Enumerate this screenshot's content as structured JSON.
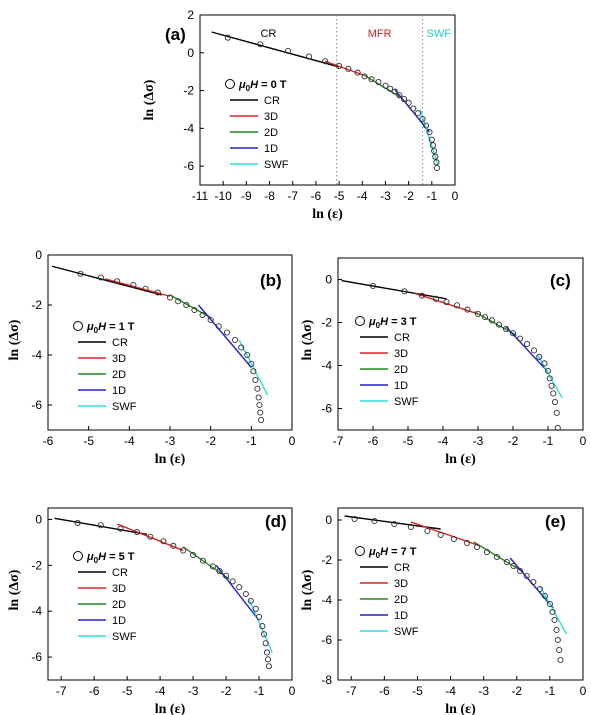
{
  "chart_data": [
    {
      "panel": "(a)",
      "type": "scatter",
      "xlabel": "ln (ε)",
      "ylabel": "ln (Δσ)",
      "xlim": [
        -11,
        0
      ],
      "ylim": [
        -7,
        2
      ],
      "xticks": [
        -11,
        -10,
        -9,
        -8,
        -7,
        -6,
        -5,
        -4,
        -3,
        -2,
        -1,
        0
      ],
      "yticks": [
        -6,
        -4,
        -2,
        0,
        2
      ],
      "legend_title": "μ0H = 0 T",
      "legend_entries": [
        "CR",
        "3D",
        "2D",
        "1D",
        "SWF"
      ],
      "region_labels": [
        {
          "text": "CR",
          "color": "#000000"
        },
        {
          "text": "MFR",
          "color": "#cc2222"
        },
        {
          "text": "SWF",
          "color": "#22cccc"
        }
      ],
      "region_boundaries": [
        -5.1,
        -1.4
      ],
      "points": {
        "x": [
          -9.8,
          -8.4,
          -7.2,
          -6.3,
          -5.6,
          -5.0,
          -4.6,
          -4.2,
          -3.9,
          -3.6,
          -3.3,
          -3.0,
          -2.8,
          -2.6,
          -2.4,
          -2.2,
          -2.0,
          -1.8,
          -1.6,
          -1.4,
          -1.25,
          -1.1,
          -1.0,
          -0.95,
          -0.9,
          -0.85,
          -0.8,
          -0.78
        ],
        "y": [
          0.8,
          0.45,
          0.1,
          -0.2,
          -0.45,
          -0.7,
          -0.85,
          -1.05,
          -1.25,
          -1.4,
          -1.55,
          -1.75,
          -1.9,
          -2.05,
          -2.25,
          -2.45,
          -2.65,
          -2.95,
          -3.2,
          -3.5,
          -3.85,
          -4.2,
          -4.6,
          -4.9,
          -5.2,
          -5.5,
          -5.8,
          -6.1
        ]
      },
      "series": [
        {
          "name": "CR",
          "color": "#000000",
          "x": [
            -10.5,
            -5.0
          ],
          "y": [
            1.1,
            -0.75
          ]
        },
        {
          "name": "3D",
          "color": "#dd2222",
          "x": [
            -5.6,
            -3.8
          ],
          "y": [
            -0.45,
            -1.25
          ]
        },
        {
          "name": "2D",
          "color": "#228822",
          "x": [
            -3.9,
            -2.3
          ],
          "y": [
            -1.2,
            -2.4
          ]
        },
        {
          "name": "1D",
          "color": "#2222cc",
          "x": [
            -2.6,
            -1.1
          ],
          "y": [
            -1.95,
            -4.2
          ]
        },
        {
          "name": "SWF",
          "color": "#33dddd",
          "x": [
            -1.5,
            -0.75
          ],
          "y": [
            -3.0,
            -5.9
          ]
        }
      ]
    },
    {
      "panel": "(b)",
      "type": "scatter",
      "xlabel": "ln (ε)",
      "ylabel": "ln (Δσ)",
      "xlim": [
        -6,
        0
      ],
      "ylim": [
        -7,
        0
      ],
      "xticks": [
        -6,
        -5,
        -4,
        -3,
        -2,
        -1,
        0
      ],
      "yticks": [
        -6,
        -4,
        -2,
        0
      ],
      "legend_title": "μ0H = 1 T",
      "legend_entries": [
        "CR",
        "3D",
        "2D",
        "1D",
        "SWF"
      ],
      "points": {
        "x": [
          -5.2,
          -4.7,
          -4.3,
          -3.9,
          -3.6,
          -3.3,
          -3.0,
          -2.8,
          -2.6,
          -2.4,
          -2.2,
          -2.0,
          -1.8,
          -1.6,
          -1.4,
          -1.25,
          -1.1,
          -1.0,
          -0.95,
          -0.9,
          -0.85,
          -0.82,
          -0.8,
          -0.78,
          -0.76
        ],
        "y": [
          -0.75,
          -0.9,
          -1.05,
          -1.2,
          -1.35,
          -1.5,
          -1.7,
          -1.85,
          -2.0,
          -2.2,
          -2.4,
          -2.6,
          -2.85,
          -3.1,
          -3.4,
          -3.7,
          -4.0,
          -4.35,
          -4.65,
          -5.0,
          -5.35,
          -5.7,
          -6.0,
          -6.3,
          -6.6
        ]
      },
      "series": [
        {
          "name": "CR",
          "color": "#000000",
          "x": [
            -5.9,
            -3.2
          ],
          "y": [
            -0.45,
            -1.6
          ]
        },
        {
          "name": "3D",
          "color": "#dd2222",
          "x": [
            -4.6,
            -3.0
          ],
          "y": [
            -0.95,
            -1.65
          ]
        },
        {
          "name": "2D",
          "color": "#228822",
          "x": [
            -3.0,
            -2.0
          ],
          "y": [
            -1.6,
            -2.5
          ]
        },
        {
          "name": "1D",
          "color": "#2222cc",
          "x": [
            -2.3,
            -1.0
          ],
          "y": [
            -2.0,
            -4.5
          ]
        },
        {
          "name": "SWF",
          "color": "#33dddd",
          "x": [
            -1.3,
            -0.6
          ],
          "y": [
            -3.4,
            -5.6
          ]
        }
      ]
    },
    {
      "panel": "(c)",
      "type": "scatter",
      "xlabel": "ln (ε)",
      "ylabel": "ln (Δσ)",
      "xlim": [
        -7,
        0
      ],
      "ylim": [
        -7,
        1
      ],
      "xticks": [
        -7,
        -6,
        -5,
        -4,
        -3,
        -2,
        -1,
        0
      ],
      "yticks": [
        -6,
        -4,
        -2,
        0
      ],
      "legend_title": "μ0H = 3 T",
      "legend_entries": [
        "CR",
        "3D",
        "2D",
        "1D",
        "SWF"
      ],
      "points": {
        "x": [
          -6.0,
          -5.1,
          -4.6,
          -4.2,
          -3.9,
          -3.6,
          -3.3,
          -3.0,
          -2.8,
          -2.6,
          -2.4,
          -2.2,
          -2.0,
          -1.8,
          -1.6,
          -1.4,
          -1.25,
          -1.1,
          -1.0,
          -0.95,
          -0.9,
          -0.85,
          -0.8,
          -0.75,
          -0.72
        ],
        "y": [
          -0.3,
          -0.55,
          -0.75,
          -0.9,
          -1.05,
          -1.2,
          -1.4,
          -1.6,
          -1.75,
          -1.9,
          -2.1,
          -2.3,
          -2.5,
          -2.75,
          -3.0,
          -3.3,
          -3.6,
          -3.9,
          -4.25,
          -4.6,
          -4.95,
          -5.3,
          -5.7,
          -6.2,
          -6.9
        ]
      },
      "series": [
        {
          "name": "CR",
          "color": "#000000",
          "x": [
            -6.9,
            -3.9
          ],
          "y": [
            -0.05,
            -0.9
          ]
        },
        {
          "name": "3D",
          "color": "#dd2222",
          "x": [
            -4.8,
            -3.0
          ],
          "y": [
            -0.65,
            -1.6
          ]
        },
        {
          "name": "2D",
          "color": "#228822",
          "x": [
            -3.1,
            -1.9
          ],
          "y": [
            -1.5,
            -2.6
          ]
        },
        {
          "name": "1D",
          "color": "#2222cc",
          "x": [
            -2.2,
            -1.0
          ],
          "y": [
            -2.2,
            -4.3
          ]
        },
        {
          "name": "SWF",
          "color": "#33dddd",
          "x": [
            -1.3,
            -0.6
          ],
          "y": [
            -3.5,
            -5.5
          ]
        }
      ]
    },
    {
      "panel": "(d)",
      "type": "scatter",
      "xlabel": "ln (ε)",
      "ylabel": "ln (Δσ)",
      "xlim": [
        -7.4,
        0
      ],
      "ylim": [
        -7,
        0.5
      ],
      "xticks": [
        -7,
        -6,
        -5,
        -4,
        -3,
        -2,
        -1,
        0
      ],
      "yticks": [
        -6,
        -4,
        -2,
        0
      ],
      "legend_title": "μ0H = 5 T",
      "legend_entries": [
        "CR",
        "3D",
        "2D",
        "1D",
        "SWF"
      ],
      "points": {
        "x": [
          -6.5,
          -5.8,
          -5.2,
          -4.7,
          -4.3,
          -3.9,
          -3.6,
          -3.3,
          -3.0,
          -2.7,
          -2.4,
          -2.2,
          -2.0,
          -1.8,
          -1.6,
          -1.4,
          -1.25,
          -1.1,
          -1.0,
          -0.9,
          -0.85,
          -0.8,
          -0.76,
          -0.73,
          -0.7
        ],
        "y": [
          -0.15,
          -0.25,
          -0.4,
          -0.55,
          -0.75,
          -0.95,
          -1.15,
          -1.35,
          -1.55,
          -1.8,
          -2.05,
          -2.25,
          -2.45,
          -2.7,
          -2.95,
          -3.25,
          -3.55,
          -3.9,
          -4.25,
          -4.65,
          -5.0,
          -5.4,
          -5.8,
          -6.1,
          -6.4
        ]
      },
      "series": [
        {
          "name": "CR",
          "color": "#000000",
          "x": [
            -7.2,
            -4.4
          ],
          "y": [
            0.05,
            -0.65
          ]
        },
        {
          "name": "3D",
          "color": "#dd2222",
          "x": [
            -5.3,
            -3.3
          ],
          "y": [
            -0.2,
            -1.35
          ]
        },
        {
          "name": "2D",
          "color": "#228822",
          "x": [
            -3.3,
            -1.9
          ],
          "y": [
            -1.2,
            -2.6
          ]
        },
        {
          "name": "1D",
          "color": "#2222cc",
          "x": [
            -2.3,
            -1.0
          ],
          "y": [
            -2.0,
            -4.4
          ]
        },
        {
          "name": "SWF",
          "color": "#33dddd",
          "x": [
            -1.3,
            -0.6
          ],
          "y": [
            -3.5,
            -5.8
          ]
        }
      ]
    },
    {
      "panel": "(e)",
      "type": "scatter",
      "xlabel": "ln (ε)",
      "ylabel": "ln (Δσ)",
      "xlim": [
        -7.4,
        0
      ],
      "ylim": [
        -8,
        0.6
      ],
      "xticks": [
        -7,
        -6,
        -5,
        -4,
        -3,
        -2,
        -1,
        0
      ],
      "yticks": [
        -8,
        -6,
        -4,
        -2,
        0
      ],
      "legend_title": "μ0H = 7 T",
      "legend_entries": [
        "CR",
        "3D",
        "2D",
        "1D",
        "SWF"
      ],
      "points": {
        "x": [
          -6.9,
          -6.3,
          -5.7,
          -5.2,
          -4.7,
          -4.3,
          -3.9,
          -3.5,
          -3.2,
          -2.9,
          -2.6,
          -2.3,
          -2.1,
          -1.9,
          -1.7,
          -1.5,
          -1.3,
          -1.15,
          -1.0,
          -0.92,
          -0.86,
          -0.8,
          -0.76,
          -0.72,
          -0.68
        ],
        "y": [
          0.05,
          -0.05,
          -0.2,
          -0.35,
          -0.55,
          -0.75,
          -0.95,
          -1.15,
          -1.35,
          -1.6,
          -1.85,
          -2.1,
          -2.3,
          -2.55,
          -2.8,
          -3.1,
          -3.45,
          -3.8,
          -4.2,
          -4.6,
          -5.0,
          -5.5,
          -6.0,
          -6.5,
          -7.0
        ]
      },
      "series": [
        {
          "name": "CR",
          "color": "#000000",
          "x": [
            -7.2,
            -4.3
          ],
          "y": [
            0.2,
            -0.45
          ]
        },
        {
          "name": "3D",
          "color": "#dd2222",
          "x": [
            -5.2,
            -3.1
          ],
          "y": [
            -0.1,
            -1.3
          ]
        },
        {
          "name": "2D",
          "color": "#228822",
          "x": [
            -3.3,
            -1.8
          ],
          "y": [
            -1.1,
            -2.6
          ]
        },
        {
          "name": "1D",
          "color": "#2222cc",
          "x": [
            -2.2,
            -0.9
          ],
          "y": [
            -1.9,
            -4.4
          ]
        },
        {
          "name": "SWF",
          "color": "#33dddd",
          "x": [
            -1.3,
            -0.5
          ],
          "y": [
            -3.3,
            -5.7
          ]
        }
      ]
    }
  ]
}
